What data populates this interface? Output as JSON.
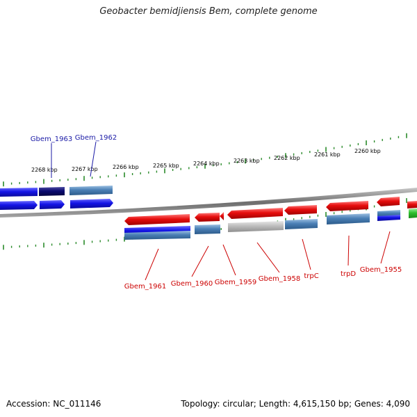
{
  "title": "Geobacter bemidjiensis Bem, complete genome",
  "footer": {
    "accession": "Accession: NC_011146",
    "topology": "Topology: circular; Length: 4,615,150 bp; Genes: 4,090"
  },
  "colors": {
    "forward_label": "#1a1aa6",
    "reverse_label": "#cc0000",
    "tick": "#2a8a2a",
    "backbone": "#7a7a7a",
    "gene_blue": "#1414e6",
    "gene_navy": "#0a0a70",
    "gene_steel": "#4a7fb5",
    "gene_red": "#e60d0d",
    "gene_grey": "#b9b9b9",
    "gene_green": "#2fbf2f"
  },
  "scale_labels": [
    "2268 kbp",
    "2267 kbp",
    "2266 kbp",
    "2265 kbp",
    "2264 kbp",
    "2263 kbp",
    "2262 kbp",
    "2261 kbp",
    "2260 kbp"
  ],
  "forward_gene_labels": [
    "Gbem_1963",
    "Gbem_1962"
  ],
  "reverse_gene_labels": [
    "Gbem_1961",
    "Gbem_1960",
    "Gbem_1959",
    "Gbem_1958",
    "trpC",
    "trpD",
    "Gbem_1955"
  ]
}
